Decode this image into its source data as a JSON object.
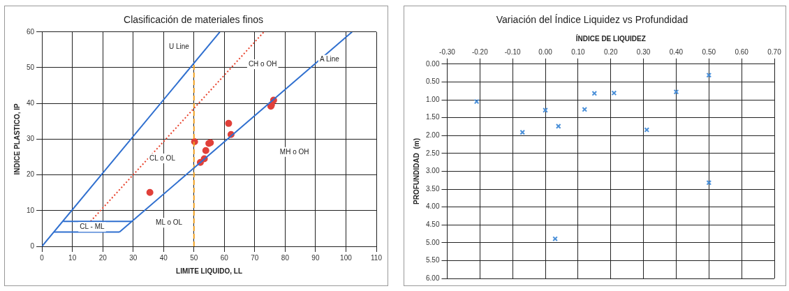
{
  "chart_data": [
    {
      "type": "scatter",
      "title": "Clasificación de materiales finos",
      "xlabel": "LIMITE LIQUIDO, LL",
      "ylabel": "INDICE PLASTICO, IP",
      "xlim": [
        0,
        110
      ],
      "xticks": [
        0,
        10,
        20,
        30,
        40,
        50,
        60,
        70,
        80,
        90,
        100,
        110
      ],
      "ylim": [
        0,
        60
      ],
      "yticks": [
        0,
        10,
        20,
        30,
        40,
        50,
        60
      ],
      "grid": true,
      "marker": "circle",
      "series": [
        {
          "type": "line",
          "marker": "none",
          "color": "#2f6fcf",
          "x": [
            0,
            58.5
          ],
          "values": [
            0,
            60
          ]
        },
        {
          "type": "line",
          "marker": "none",
          "color": "#2f6fcf",
          "x": [
            25.5,
            102
          ],
          "values": [
            4,
            60
          ]
        },
        {
          "type": "line",
          "marker": "none",
          "color": "#2f6fcf",
          "x": [
            4,
            25.5
          ],
          "values": [
            4,
            4
          ]
        },
        {
          "type": "line",
          "marker": "none",
          "color": "#2f6fcf",
          "x": [
            7,
            29.6
          ],
          "values": [
            7,
            7
          ]
        },
        {
          "type": "line",
          "marker": "none",
          "color": "#e8402a",
          "line_style": "dotted",
          "x": [
            16,
            73
          ],
          "values": [
            7,
            60
          ]
        },
        {
          "type": "line",
          "marker": "none",
          "color": "#f0a020",
          "line_style": "dashed",
          "x": [
            50,
            50
          ],
          "values": [
            0,
            51
          ]
        },
        {
          "color": "#e0403a",
          "x": [
            35.5,
            50.2,
            52.1,
            53.4,
            53.9,
            54.9,
            55.4,
            61.4,
            62.2,
            75.3,
            75.5,
            76.2
          ],
          "values": [
            15.1,
            29.3,
            23.5,
            24.5,
            26.8,
            28.8,
            29.0,
            34.4,
            31.3,
            39.2,
            39.6,
            40.9
          ]
        }
      ],
      "annotations": [
        "U Line",
        "CH o OH",
        "A Line",
        "CL o OL",
        "MH o OH",
        "ML o OL",
        "CL - ML"
      ]
    },
    {
      "type": "scatter",
      "title": "Variación del Índice Liquidez vs Profundidad",
      "xlabel": "ÍNDICE DE LIQUIDEZ",
      "ylabel": "PROFUNDIDAD  (m)",
      "xlim": [
        -0.3,
        0.7
      ],
      "xticks": [
        {
          "value": -0.3,
          "label": "-0.30"
        },
        {
          "value": -0.2,
          "label": "-0.20"
        },
        {
          "value": -0.1,
          "label": "-0.10"
        },
        {
          "value": 0,
          "label": "0.00"
        },
        {
          "value": 0.1,
          "label": "0.10"
        },
        {
          "value": 0.2,
          "label": "0.20"
        },
        {
          "value": 0.3,
          "label": "0.30"
        },
        {
          "value": 0.4,
          "label": "0.40"
        },
        {
          "value": 0.5,
          "label": "0.50"
        },
        {
          "value": 0.6,
          "label": "0.60"
        },
        {
          "value": 0.7,
          "label": "0.70"
        }
      ],
      "ylim": [
        6,
        0
      ],
      "yticks": [
        {
          "value": 0,
          "label": "0.00"
        },
        {
          "value": 0.5,
          "label": "0.50"
        },
        {
          "value": 1,
          "label": "1.00"
        },
        {
          "value": 1.5,
          "label": "1.50"
        },
        {
          "value": 2,
          "label": "2.00"
        },
        {
          "value": 2.5,
          "label": "2.50"
        },
        {
          "value": 3,
          "label": "3.00"
        },
        {
          "value": 3.5,
          "label": "3.50"
        },
        {
          "value": 4,
          "label": "4.00"
        },
        {
          "value": 4.5,
          "label": "4.50"
        },
        {
          "value": 5,
          "label": "5.00"
        },
        {
          "value": 5.5,
          "label": "5.50"
        },
        {
          "value": 6,
          "label": "6.00"
        }
      ],
      "grid": true,
      "marker": "cross",
      "series": [
        {
          "color": "#4a8fd8",
          "x": [
            -0.21,
            -0.07,
            0.0,
            0.04,
            0.12,
            0.15,
            0.21,
            0.31,
            0.4,
            0.5,
            0.5,
            0.03
          ],
          "values": [
            1.05,
            1.91,
            1.29,
            1.74,
            1.27,
            0.82,
            0.81,
            1.84,
            0.78,
            0.31,
            3.32,
            4.89
          ]
        }
      ]
    }
  ]
}
